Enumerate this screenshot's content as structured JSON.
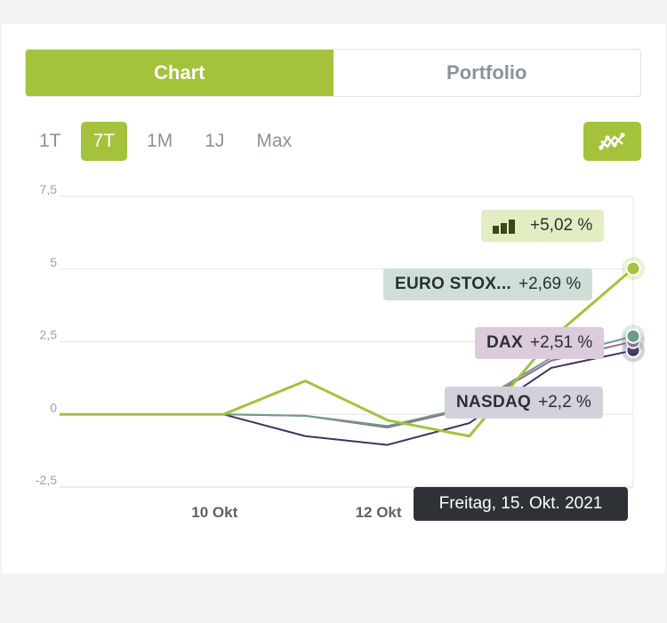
{
  "tabs": [
    {
      "label": "Chart",
      "active": true
    },
    {
      "label": "Portfolio",
      "active": false
    }
  ],
  "ranges": [
    {
      "label": "1T",
      "active": false
    },
    {
      "label": "7T",
      "active": true
    },
    {
      "label": "1M",
      "active": false
    },
    {
      "label": "1J",
      "active": false
    },
    {
      "label": "Max",
      "active": false
    }
  ],
  "chart_toggle_icon": "line-chart-icon",
  "tooltip": "Freitag, 15. Okt. 2021",
  "labels": {
    "portfolio": {
      "icon": "bar-chart-icon",
      "value": "+5,02 %"
    },
    "euro": {
      "name": "EURO STOX...",
      "value": "+2,69 %"
    },
    "dax": {
      "name": "DAX",
      "value": "+2,51 %"
    },
    "nasdaq": {
      "name": "NASDAQ",
      "value": "+2,2 %"
    }
  },
  "colors": {
    "accent": "#a4c23b",
    "portfolio": "#a4c23b",
    "euro": "#6f9a8a",
    "dax": "#8b6f8f",
    "nasdaq": "#3b355f",
    "portfolio_label_bg": "#e3edc2",
    "euro_label_bg": "#cfdfd7",
    "dax_label_bg": "#dccbdb",
    "nasdaq_label_bg": "#d3d1dc"
  },
  "chart_data": {
    "type": "line",
    "x": [
      "",
      "",
      "10 Okt",
      "",
      "12 Okt",
      "",
      "",
      ""
    ],
    "xlim": [
      0,
      7
    ],
    "ylim": [
      -2.5,
      7.5
    ],
    "yticks": [
      "7,5",
      "5",
      "2,5",
      "0",
      "-2,5"
    ],
    "ytick_values": [
      7.5,
      5,
      2.5,
      0,
      -2.5
    ],
    "xticks": [
      {
        "x": 2,
        "label": "10 Okt"
      },
      {
        "x": 4,
        "label": "12 Okt"
      }
    ],
    "grid": true,
    "series": [
      {
        "key": "nasdaq",
        "values": [
          0,
          0,
          0,
          -0.75,
          -1.05,
          -0.3,
          1.6,
          2.2
        ]
      },
      {
        "key": "dax",
        "values": [
          0,
          0,
          0,
          -0.05,
          -0.45,
          0.2,
          1.85,
          2.51
        ]
      },
      {
        "key": "euro",
        "values": [
          0,
          0,
          0,
          -0.05,
          -0.4,
          0.25,
          1.95,
          2.69
        ]
      },
      {
        "key": "portfolio",
        "values": [
          0,
          0,
          0,
          1.15,
          -0.2,
          -0.75,
          2.6,
          5.02
        ]
      }
    ]
  }
}
